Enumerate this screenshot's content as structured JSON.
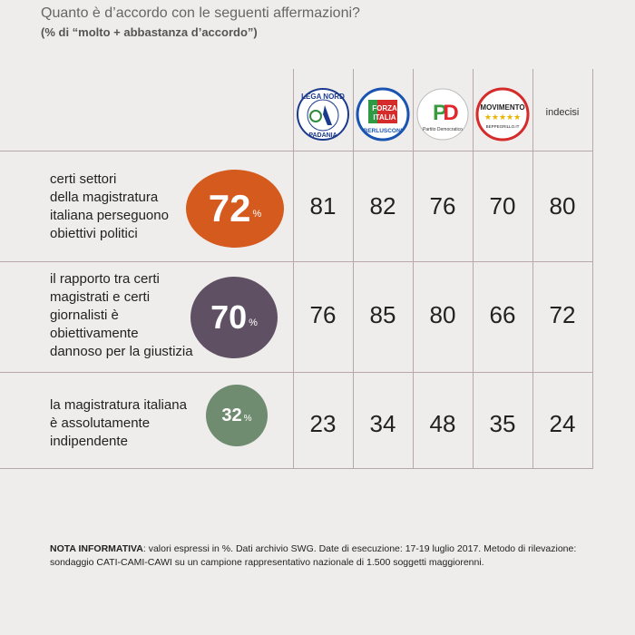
{
  "title": "Quanto è d’accordo con le seguenti affermazioni?",
  "subtitle": "(% di “molto + abbastanza d’accordo”)",
  "logos": {
    "lega": {
      "top": "LEGA NORD",
      "bottom": "PADANIA",
      "color": "#1b3a8c"
    },
    "forza": {
      "top": "FORZA ITALIA",
      "bottom": "BERLUSCONI",
      "color": "#1a54b0",
      "flag": "#d52b2b"
    },
    "pd": {
      "mark": "PD",
      "bottom": "Partito Democratico",
      "color": "#e0282e",
      "green": "#3a9a3f"
    },
    "m5s": {
      "top": "MOVIMENTO",
      "stars": "★★★★★",
      "bottom": "BEPPEGRILLO.IT",
      "color": "#d52b2b"
    }
  },
  "chart_data": {
    "type": "table",
    "columns": [
      "Lega Nord",
      "Forza Italia",
      "Partito Democratico",
      "Movimento 5 Stelle",
      "indecisi"
    ],
    "undecided_label": "indecisi",
    "rows": [
      {
        "statement": [
          "certi settori",
          "della magistratura",
          "italiana perseguono",
          "obiettivi politici"
        ],
        "total": "72",
        "values": [
          "81",
          "82",
          "76",
          "70",
          "80"
        ],
        "color": "#d45a1e"
      },
      {
        "statement": [
          "il rapporto tra certi",
          "magistrati e certi",
          "giornalisti è",
          "obiettivamente",
          "dannoso per la giustizia"
        ],
        "total": "70",
        "values": [
          "76",
          "85",
          "80",
          "66",
          "72"
        ],
        "color": "#5f5163"
      },
      {
        "statement": [
          "la magistratura italiana",
          "è assolutamente",
          "indipendente"
        ],
        "total": "32",
        "values": [
          "23",
          "34",
          "48",
          "35",
          "24"
        ],
        "color": "#6f8b70"
      }
    ],
    "unit": "%"
  },
  "note": {
    "label": "NOTA INFORMATIVA",
    "text": ": valori espressi in %. Dati archivio SWG. Date di esecuzione: 17-19 luglio 2017. Metodo di rilevazione: sondaggio CATI-CAMI-CAWI su un campione rappresentativo nazionale di 1.500 soggetti maggiorenni."
  }
}
